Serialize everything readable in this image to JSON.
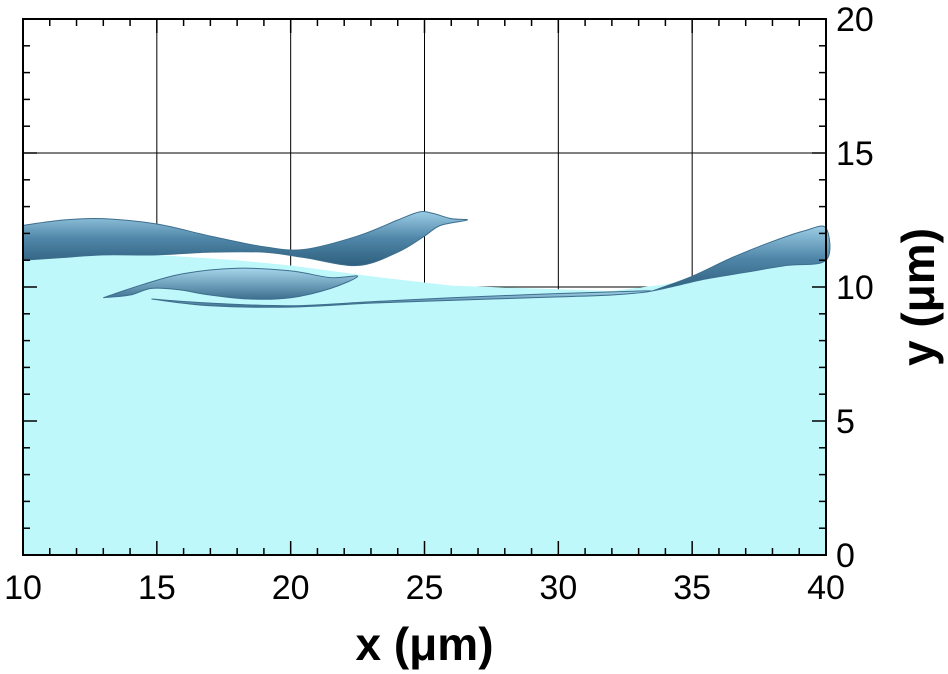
{
  "chart_data": {
    "type": "area",
    "title": "",
    "xlabel": "x (μm)",
    "ylabel": "y (μm)",
    "xlim": [
      10,
      40
    ],
    "ylim": [
      0,
      20
    ],
    "x_ticks": [
      10,
      15,
      20,
      25,
      30,
      35,
      40
    ],
    "y_ticks": [
      0,
      5,
      10,
      15,
      20
    ],
    "grid": true,
    "y_axis_position": "right",
    "colors": {
      "liquid": "#bff8fb",
      "surface_dark": "#3d6f8e",
      "surface_mid": "#5b94b5",
      "surface_light": "#8fc3dd"
    },
    "liquid_surface": {
      "x": [
        10,
        12,
        15,
        18,
        20,
        23,
        26,
        29,
        32,
        34,
        36,
        38,
        40
      ],
      "y": [
        11.0,
        11.25,
        11.2,
        11.0,
        10.8,
        10.4,
        10.05,
        9.95,
        9.85,
        10.1,
        10.5,
        10.8,
        11.0
      ]
    },
    "surfaces": [
      {
        "name": "",
        "shade": "surface_dark",
        "x": [
          10,
          11.5,
          13,
          15,
          17,
          19,
          20.5,
          22.5,
          24,
          24.8,
          25.3,
          26.0,
          26.6,
          25.6,
          25.0,
          24.0,
          22.5,
          20.5,
          19,
          17,
          15,
          13,
          11.5,
          10
        ],
        "y": [
          12.3,
          12.5,
          12.55,
          12.35,
          11.9,
          11.5,
          11.4,
          11.9,
          12.5,
          12.8,
          12.75,
          12.55,
          12.5,
          12.3,
          11.9,
          11.3,
          10.8,
          11.1,
          11.3,
          11.3,
          11.2,
          11.2,
          11.1,
          11.0
        ]
      },
      {
        "name": "",
        "shade": "surface_mid",
        "x": [
          13.0,
          14.5,
          16,
          18,
          20,
          21.5,
          22.5,
          21.5,
          20,
          18.5,
          17,
          15.8,
          14.8,
          14.0,
          13.0
        ],
        "y": [
          9.6,
          10.1,
          10.5,
          10.7,
          10.6,
          10.35,
          10.4,
          9.95,
          9.6,
          9.55,
          9.7,
          9.9,
          9.95,
          9.7,
          9.6
        ]
      },
      {
        "name": "",
        "shade": "surface_dark",
        "x": [
          33.5,
          35,
          36.5,
          38,
          39.2,
          40,
          40,
          38.5,
          37,
          35.5,
          34.2,
          33.5
        ],
        "y": [
          9.85,
          10.4,
          11.1,
          11.7,
          12.1,
          12.2,
          11.0,
          10.8,
          10.55,
          10.3,
          10.0,
          9.85
        ]
      },
      {
        "name": "",
        "shade": "surface_mid",
        "x": [
          14.8,
          17,
          20,
          23,
          26,
          29,
          32,
          33.5,
          32,
          29,
          26,
          23,
          20,
          17,
          14.8
        ],
        "y": [
          9.55,
          9.4,
          9.3,
          9.45,
          9.6,
          9.72,
          9.82,
          9.85,
          9.7,
          9.6,
          9.5,
          9.4,
          9.25,
          9.3,
          9.55
        ]
      }
    ]
  }
}
